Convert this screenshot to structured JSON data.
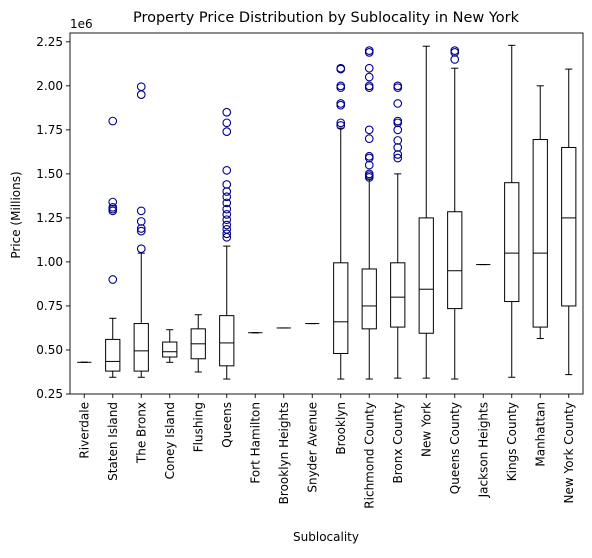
{
  "chart_data": {
    "type": "box",
    "title": "Property Price Distribution by Sublocality in New York",
    "xlabel": "Sublocality",
    "ylabel": "Price (Millions)",
    "y_offset_label": "1e6",
    "ylim": [
      250000,
      2300000
    ],
    "yticks": [
      {
        "value": 250000,
        "label": "0.25"
      },
      {
        "value": 500000,
        "label": "0.50"
      },
      {
        "value": 750000,
        "label": "0.75"
      },
      {
        "value": 1000000,
        "label": "1.00"
      },
      {
        "value": 1250000,
        "label": "1.25"
      },
      {
        "value": 1500000,
        "label": "1.50"
      },
      {
        "value": 1750000,
        "label": "1.75"
      },
      {
        "value": 2000000,
        "label": "2.00"
      },
      {
        "value": 2250000,
        "label": "2.25"
      }
    ],
    "grid": false,
    "box_color": "#000000",
    "flier_color": "#00008b",
    "categories": [
      {
        "name": "Riverdale",
        "whislo": 430000,
        "q1": 430000,
        "med": 430000,
        "q3": 430000,
        "whishi": 430000,
        "fliers": []
      },
      {
        "name": "Staten Island",
        "whislo": 345000,
        "q1": 380000,
        "med": 435000,
        "q3": 560000,
        "whishi": 680000,
        "fliers": [
          900000,
          1290000,
          1300000,
          1310000,
          1340000,
          1800000
        ]
      },
      {
        "name": "The Bronx",
        "whislo": 345000,
        "q1": 380000,
        "med": 495000,
        "q3": 650000,
        "whishi": 1050000,
        "fliers": [
          1075000,
          1175000,
          1190000,
          1230000,
          1290000,
          1950000,
          1995000
        ]
      },
      {
        "name": "Coney Island",
        "whislo": 430000,
        "q1": 460000,
        "med": 490000,
        "q3": 545000,
        "whishi": 615000,
        "fliers": []
      },
      {
        "name": "Flushing",
        "whislo": 375000,
        "q1": 450000,
        "med": 535000,
        "q3": 620000,
        "whishi": 700000,
        "fliers": []
      },
      {
        "name": "Queens",
        "whislo": 335000,
        "q1": 410000,
        "med": 540000,
        "q3": 695000,
        "whishi": 1090000,
        "fliers": [
          1140000,
          1160000,
          1185000,
          1210000,
          1240000,
          1270000,
          1300000,
          1335000,
          1370000,
          1400000,
          1440000,
          1520000,
          1740000,
          1790000,
          1850000
        ]
      },
      {
        "name": "Fort Hamilton",
        "whislo": 598000,
        "q1": 598000,
        "med": 598000,
        "q3": 598000,
        "whishi": 598000,
        "fliers": []
      },
      {
        "name": "Brooklyn Heights",
        "whislo": 625000,
        "q1": 625000,
        "med": 625000,
        "q3": 625000,
        "whishi": 625000,
        "fliers": []
      },
      {
        "name": "Snyder Avenue",
        "whislo": 650000,
        "q1": 650000,
        "med": 650000,
        "q3": 650000,
        "whishi": 650000,
        "fliers": []
      },
      {
        "name": "Brooklyn",
        "whislo": 335000,
        "q1": 480000,
        "med": 660000,
        "q3": 995000,
        "whishi": 1760000,
        "fliers": [
          1775000,
          1790000,
          1890000,
          1900000,
          1990000,
          2000000,
          2095000,
          2100000
        ]
      },
      {
        "name": "Richmond County",
        "whislo": 335000,
        "q1": 620000,
        "med": 750000,
        "q3": 960000,
        "whishi": 1470000,
        "fliers": [
          1480000,
          1490000,
          1500000,
          1550000,
          1590000,
          1600000,
          1700000,
          1750000,
          1990000,
          2000000,
          2050000,
          2100000,
          2190000,
          2200000
        ]
      },
      {
        "name": "Bronx County",
        "whislo": 340000,
        "q1": 630000,
        "med": 800000,
        "q3": 995000,
        "whishi": 1500000,
        "fliers": [
          1590000,
          1610000,
          1650000,
          1690000,
          1750000,
          1790000,
          1800000,
          1900000,
          1990000,
          2000000
        ]
      },
      {
        "name": "New York",
        "whislo": 340000,
        "q1": 595000,
        "med": 845000,
        "q3": 1250000,
        "whishi": 2225000,
        "fliers": []
      },
      {
        "name": "Queens County",
        "whislo": 335000,
        "q1": 735000,
        "med": 950000,
        "q3": 1285000,
        "whishi": 2100000,
        "fliers": [
          2150000,
          2190000,
          2200000
        ]
      },
      {
        "name": "Jackson Heights",
        "whislo": 985000,
        "q1": 985000,
        "med": 985000,
        "q3": 985000,
        "whishi": 985000,
        "fliers": []
      },
      {
        "name": "Kings County",
        "whislo": 345000,
        "q1": 775000,
        "med": 1050000,
        "q3": 1450000,
        "whishi": 2230000,
        "fliers": []
      },
      {
        "name": "Manhattan",
        "whislo": 565000,
        "q1": 630000,
        "med": 1050000,
        "q3": 1695000,
        "whishi": 2000000,
        "fliers": []
      },
      {
        "name": "New York County",
        "whislo": 360000,
        "q1": 750000,
        "med": 1250000,
        "q3": 1650000,
        "whishi": 2095000,
        "fliers": []
      }
    ]
  }
}
